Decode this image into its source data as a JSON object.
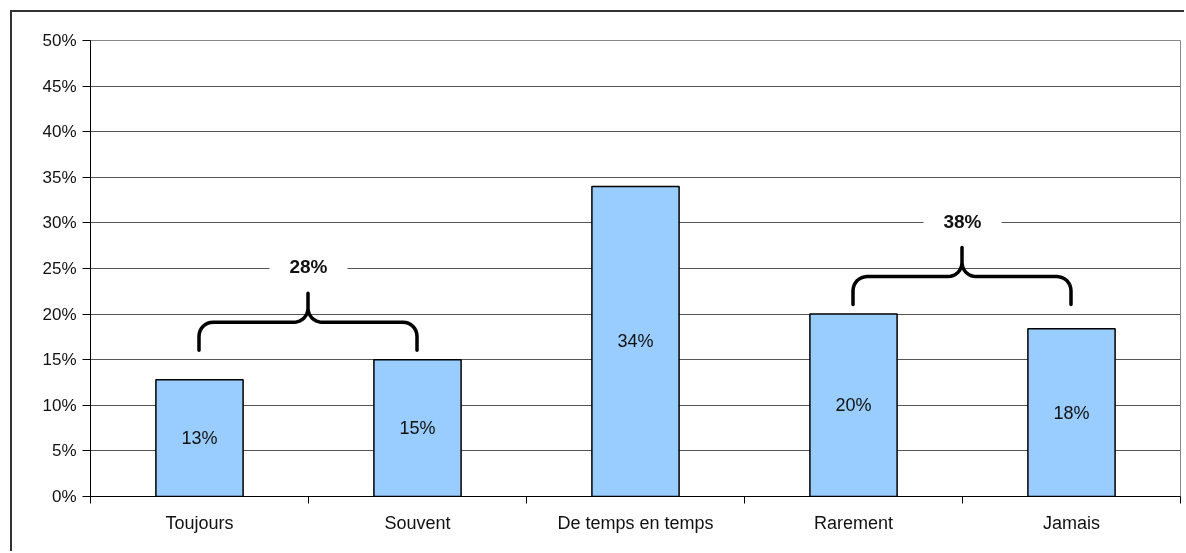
{
  "chart_data": {
    "type": "bar",
    "categories": [
      "Toujours",
      "Souvent",
      "De temps en temps",
      "Rarement",
      "Jamais"
    ],
    "values": [
      12.8,
      15,
      34,
      20,
      18.4
    ],
    "color": "#99ccff",
    "value_labels": [
      "13%",
      "15%",
      "34%",
      "20%",
      "18%"
    ],
    "ylim": [
      0,
      50
    ],
    "yticks": [
      {
        "value": 0,
        "label": "0%"
      },
      {
        "value": 5,
        "label": "5%"
      },
      {
        "value": 10,
        "label": "10%"
      },
      {
        "value": 15,
        "label": "15%"
      },
      {
        "value": 20,
        "label": "20%"
      },
      {
        "value": 25,
        "label": "25%"
      },
      {
        "value": 30,
        "label": "30%"
      },
      {
        "value": 35,
        "label": "35%"
      },
      {
        "value": 40,
        "label": "40%"
      },
      {
        "value": 45,
        "label": "45%"
      },
      {
        "value": 50,
        "label": "50%"
      }
    ],
    "grid": "y",
    "annotations": [
      "28%",
      "38%"
    ]
  }
}
